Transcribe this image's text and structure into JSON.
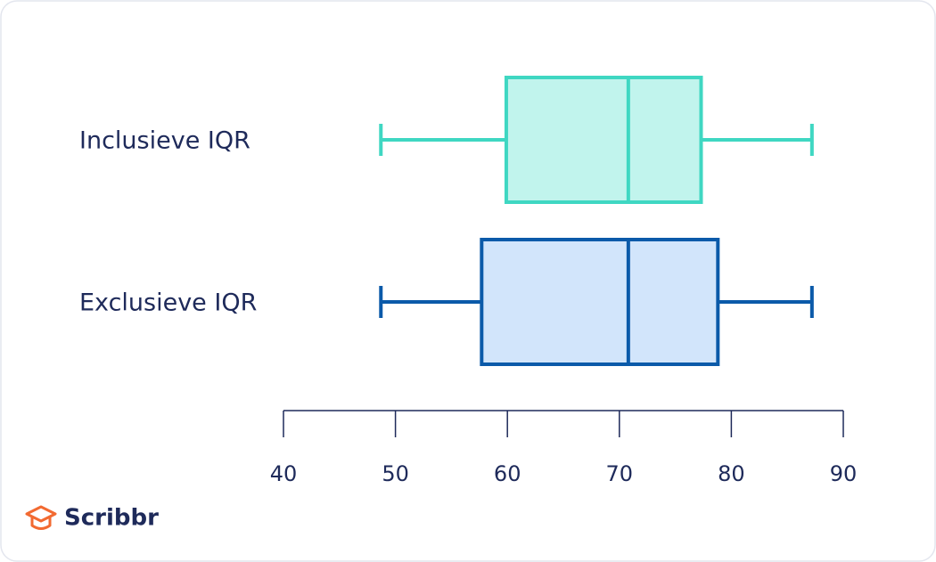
{
  "chart_data": {
    "type": "box",
    "categories": [
      "Inclusieve IQR",
      "Exclusieve IQR"
    ],
    "series": [
      {
        "name": "Inclusieve IQR",
        "color": "#3fd7c2",
        "fill": "#c1f4ed",
        "min": 48.7,
        "q1": 59.9,
        "median": 70.8,
        "q3": 77.3,
        "max": 87.2
      },
      {
        "name": "Exclusieve IQR",
        "color": "#0b5aa9",
        "fill": "#d2e5fb",
        "min": 48.7,
        "q1": 57.7,
        "median": 70.8,
        "q3": 78.8,
        "max": 87.2
      }
    ],
    "xlim": [
      40,
      90
    ],
    "xticks": [
      40,
      50,
      60,
      70,
      80,
      90
    ],
    "axis_color": "#1e2a5a"
  },
  "brand": "Scribbr"
}
